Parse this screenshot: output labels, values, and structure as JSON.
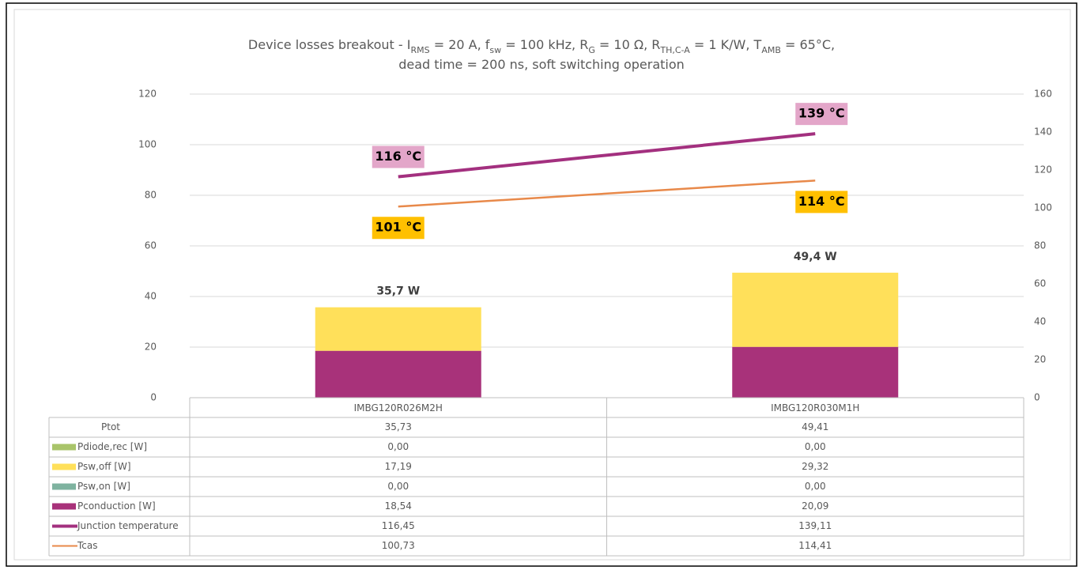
{
  "chart_data": {
    "type": "bar",
    "title": [
      [
        {
          "text": "Device losses breakout - I"
        },
        {
          "text": "RMS",
          "sub": true
        },
        {
          "text": " = 20 A, f"
        },
        {
          "text": "sw",
          "sub": true
        },
        {
          "text": " = 100 kHz, R"
        },
        {
          "text": "G",
          "sub": true
        },
        {
          "text": " = 10 Ω, R"
        },
        {
          "text": "TH,C-A",
          "sub": true
        },
        {
          "text": " = 1 K/W, T"
        },
        {
          "text": "AMB",
          "sub": true
        },
        {
          "text": " = 65°C,"
        }
      ],
      [
        {
          "text": "dead time = 200 ns, soft switching operation"
        }
      ]
    ],
    "categories": [
      "IMBG120R026M2H",
      "IMBG120R030M1H"
    ],
    "total": {
      "name": "Ptot",
      "values": [
        35.73,
        49.41
      ],
      "value_labels": [
        "35,73",
        "49,41"
      ],
      "total_labels": [
        "35,7 W",
        "49,4 W"
      ]
    },
    "series": [
      {
        "name": "Pdiode,rec [W]",
        "type": "bar",
        "color": "#a9c46a",
        "values": [
          0.0,
          0.0
        ],
        "value_labels": [
          "0,00",
          "0,00"
        ]
      },
      {
        "name": "Psw,off [W]",
        "type": "bar",
        "color": "#ffe05a",
        "values": [
          17.19,
          29.32
        ],
        "value_labels": [
          "17,19",
          "29,32"
        ]
      },
      {
        "name": "Psw,on [W]",
        "type": "bar",
        "color": "#7fb3a0",
        "values": [
          0.0,
          0.0
        ],
        "value_labels": [
          "0,00",
          "0,00"
        ]
      },
      {
        "name": "Pconduction [W]",
        "type": "bar",
        "color": "#a8327a",
        "values": [
          18.54,
          20.09
        ],
        "value_labels": [
          "18,54",
          "20,09"
        ]
      },
      {
        "name": "Junction temperature",
        "type": "line",
        "axis": "y2",
        "color": "#a3307f",
        "values": [
          116.45,
          139.11
        ],
        "value_labels": [
          "116,45",
          "139,11"
        ],
        "point_labels": [
          "116 °C",
          "139 °C"
        ],
        "label_color": "#e3a6c9",
        "label_position": "above"
      },
      {
        "name": "Tcas",
        "type": "line",
        "axis": "y2",
        "color": "#e8894a",
        "values": [
          100.73,
          114.41
        ],
        "value_labels": [
          "100,73",
          "114,41"
        ],
        "point_labels": [
          "101 °C",
          "114 °C"
        ],
        "label_color": "#ffc000",
        "label_position": "below"
      }
    ],
    "ylim": [
      0,
      120
    ],
    "yticks": [
      0,
      20,
      40,
      60,
      80,
      100,
      120
    ],
    "y2lim": [
      0,
      160
    ],
    "y2ticks": [
      0,
      20,
      40,
      60,
      80,
      100,
      120,
      140,
      160
    ],
    "grid": true
  }
}
